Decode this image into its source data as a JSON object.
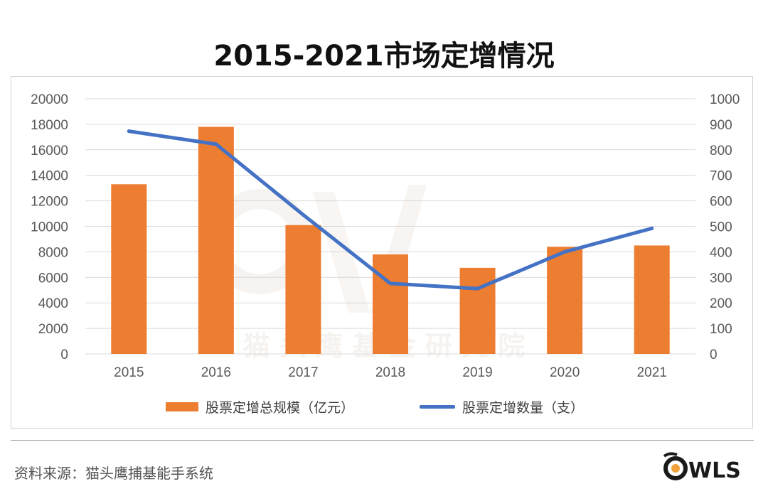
{
  "title": "2015-2021市场定增情况",
  "colors": {
    "bar": "#ED7D31",
    "line": "#4472C4",
    "grid": "#d9d9d9",
    "axis_text": "#595959"
  },
  "chart_data": {
    "type": "bar",
    "title": "2015-2021市场定增情况",
    "categories": [
      "2015",
      "2016",
      "2017",
      "2018",
      "2019",
      "2020",
      "2021"
    ],
    "series": [
      {
        "name": "股票定增总规模（亿元）",
        "type": "bar",
        "axis": "left",
        "values": [
          13300,
          17800,
          10100,
          7800,
          6750,
          8400,
          8500
        ]
      },
      {
        "name": "股票定增数量（支）",
        "type": "line",
        "axis": "right",
        "values": [
          873,
          822,
          545,
          276,
          256,
          400,
          492
        ]
      }
    ],
    "y_left": {
      "min": 0,
      "max": 20000,
      "step": 2000,
      "ticks": [
        "0",
        "2000",
        "4000",
        "6000",
        "8000",
        "10000",
        "12000",
        "14000",
        "16000",
        "18000",
        "20000"
      ]
    },
    "y_right": {
      "min": 0,
      "max": 1000,
      "step": 100,
      "ticks": [
        "0",
        "100",
        "200",
        "300",
        "400",
        "500",
        "600",
        "700",
        "800",
        "900",
        "1000"
      ]
    },
    "grid": true,
    "legend_position": "bottom"
  },
  "legend": {
    "bar_label": "股票定增总规模（亿元）",
    "line_label": "股票定增数量（支）"
  },
  "watermark_text": "猫 头 鹰 基 金 研 究 院",
  "source": "资料来源：猫头鹰捕基能手系统",
  "logo_text": "WLS"
}
